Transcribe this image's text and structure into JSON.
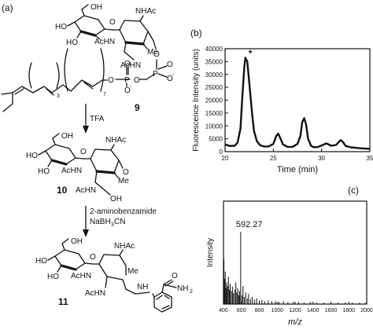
{
  "panels": {
    "a": "(a)",
    "b": "(b)",
    "c": "(c)"
  },
  "compounds": [
    "9",
    "10",
    "11"
  ],
  "labels": {
    "ho": "HO",
    "oh": "OH",
    "nhac": "NHAc",
    "achn": "AcHN",
    "me": "Me",
    "o": "O",
    "p": "P",
    "nh": "NH",
    "nh2": "NH",
    "two": "2",
    "three": "3",
    "seven": "7",
    "minus": "-"
  },
  "reagents": {
    "step1": "TFA",
    "step2_line1": "2-aminobenzamide",
    "step2_line2_a": "NaBH",
    "step2_line2_sub": "3",
    "step2_line2_b": "CN"
  },
  "chart_data": [
    {
      "type": "line",
      "xlabel": "Time (min)",
      "ylabel": "Fluorescence Intensity (units)",
      "xlim": [
        20,
        35
      ],
      "ylim": [
        0,
        40000
      ],
      "xticks": [
        20,
        25,
        30,
        35
      ],
      "yticks": [
        0,
        5000,
        10000,
        15000,
        20000,
        25000,
        30000,
        35000,
        40000
      ],
      "annotation": "*",
      "annotation_at": [
        22.1,
        37500
      ],
      "series": [
        {
          "x": [
            20.0,
            20.5,
            21.0,
            21.3,
            21.6,
            21.8,
            22.0,
            22.1,
            22.3,
            22.5,
            22.8,
            23.0,
            23.3,
            23.6,
            24.0,
            24.5,
            25.0,
            25.3,
            25.5,
            25.7,
            26.0,
            26.5,
            27.0,
            27.5,
            27.8,
            28.0,
            28.2,
            28.4,
            28.6,
            28.9,
            29.2,
            29.6,
            30.0,
            30.5,
            31.0,
            31.5,
            31.8,
            32.0,
            32.2,
            32.5,
            33.0,
            33.5,
            34.0,
            34.5,
            35.0
          ],
          "y": [
            2800,
            2200,
            2300,
            3500,
            9000,
            22000,
            33000,
            36500,
            35000,
            27000,
            15000,
            8000,
            4000,
            2600,
            2000,
            2000,
            3000,
            6000,
            7000,
            5500,
            2800,
            1800,
            1900,
            3000,
            6000,
            11500,
            13000,
            10500,
            5000,
            2300,
            1700,
            1800,
            2400,
            3200,
            2300,
            2600,
            3800,
            4500,
            3800,
            2200,
            1700,
            1500,
            1300,
            1200,
            1100
          ]
        }
      ]
    },
    {
      "type": "bar",
      "xlabel": "m/z",
      "ylabel": "Intensity",
      "xlim": [
        400,
        2000
      ],
      "xticks": [
        400,
        600,
        800,
        1000,
        1200,
        1400,
        1600,
        1800,
        2000
      ],
      "annotation": "592.27",
      "annotation_at": 592.27,
      "peaks": {
        "mz": [
          405,
          412,
          420,
          428,
          436,
          445,
          455,
          465,
          475,
          488,
          500,
          512,
          525,
          538,
          550,
          560,
          570,
          580,
          592.27,
          605,
          618,
          632,
          648,
          665,
          680,
          700,
          720,
          745,
          770,
          800,
          830,
          860,
          900,
          940,
          980,
          1020,
          1070,
          1120,
          1180,
          1240,
          1300,
          1370,
          1440,
          1520,
          1600,
          1680,
          1760,
          1840,
          1920,
          1990
        ],
        "intensity": [
          0.62,
          0.35,
          0.45,
          0.22,
          0.3,
          0.25,
          0.38,
          0.2,
          0.28,
          0.18,
          0.24,
          0.15,
          0.2,
          0.3,
          0.16,
          0.22,
          0.12,
          0.18,
          1.0,
          0.12,
          0.25,
          0.1,
          0.16,
          0.08,
          0.14,
          0.07,
          0.1,
          0.06,
          0.08,
          0.05,
          0.06,
          0.04,
          0.05,
          0.04,
          0.04,
          0.03,
          0.04,
          0.03,
          0.03,
          0.03,
          0.02,
          0.03,
          0.02,
          0.02,
          0.02,
          0.02,
          0.02,
          0.02,
          0.02,
          0.02
        ]
      }
    }
  ]
}
